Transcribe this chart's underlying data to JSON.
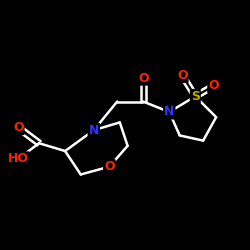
{
  "background_color": "#000000",
  "bond_color": "#ffffff",
  "atom_colors": {
    "O": "#ff2200",
    "N": "#3333ff",
    "S": "#bbaa00",
    "C": "#ffffff",
    "H": "#ffffff"
  },
  "bond_width": 1.8,
  "font_size": 9
}
